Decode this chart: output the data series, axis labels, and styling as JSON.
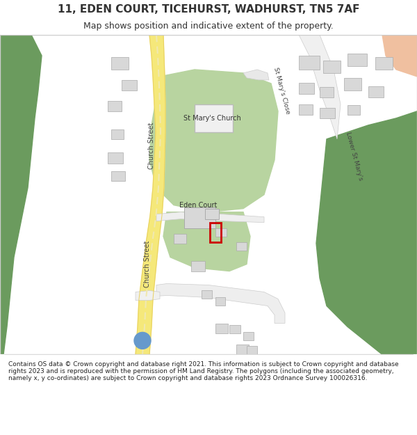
{
  "title": "11, EDEN COURT, TICEHURST, WADHURST, TN5 7AF",
  "subtitle": "Map shows position and indicative extent of the property.",
  "footer": "Contains OS data © Crown copyright and database right 2021. This information is subject to Crown copyright and database rights 2023 and is reproduced with the permission of HM Land Registry. The polygons (including the associated geometry, namely x, y co-ordinates) are subject to Crown copyright and database rights 2023 Ordnance Survey 100026316.",
  "bg_color": "#f8f8f8",
  "map_bg": "#ffffff",
  "road_yellow": "#f5e87a",
  "road_outline": "#e8d060",
  "road_white": "#ffffff",
  "green_area": "#b8d4a0",
  "dark_green": "#6b9b5e",
  "building_color": "#d8d8d8",
  "building_outline": "#aaaaaa",
  "red_rect": "#cc0000",
  "blue_circle": "#6699cc",
  "text_color": "#333333",
  "road_label_color": "#555555"
}
